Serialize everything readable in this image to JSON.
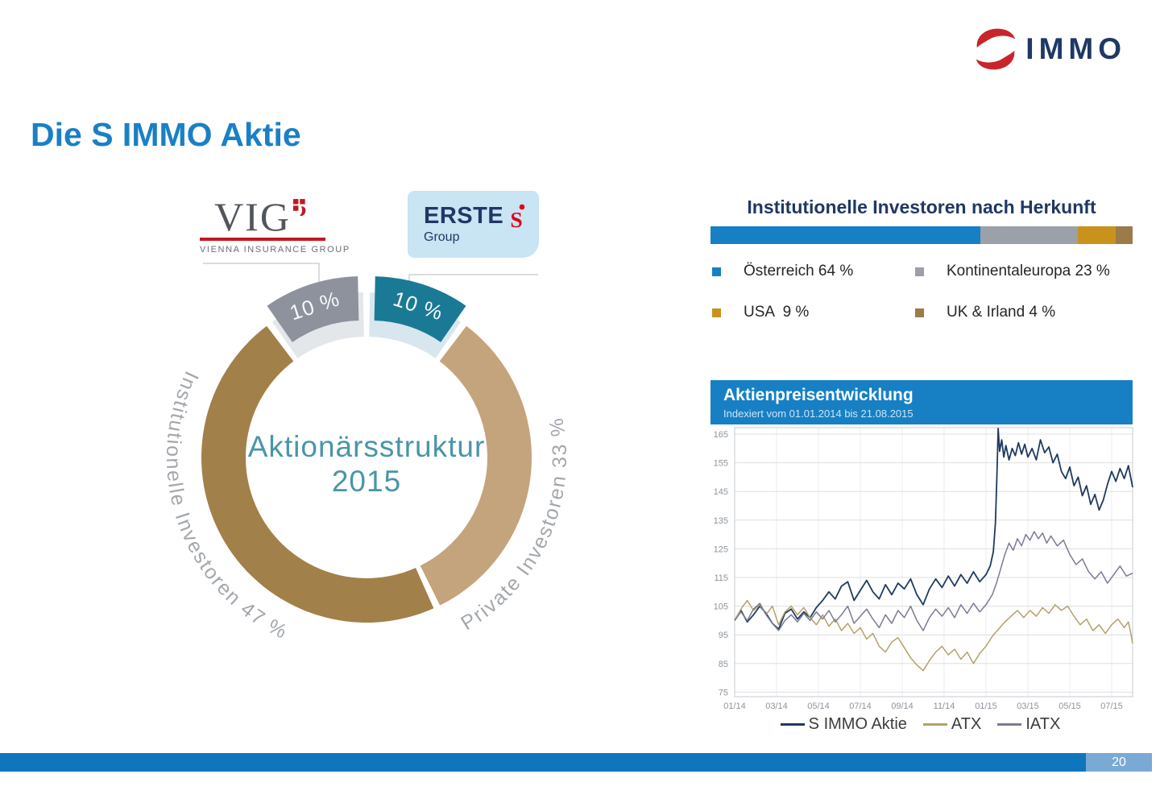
{
  "brand": {
    "s_mark": "S",
    "text": "IMMO"
  },
  "title": "Die S IMMO Aktie",
  "vig_logo": {
    "acronym": "VIG",
    "subtitle": "VIENNA INSURANCE GROUP"
  },
  "erste_logo": {
    "name": "ERSTE",
    "s_mark": "S",
    "group": "Group"
  },
  "footer": {
    "page_number": "20"
  },
  "chart_data": [
    {
      "type": "pie",
      "subtype": "donut",
      "center_label_line1": "Aktionärsstruktur",
      "center_label_line2": "2015",
      "slices": [
        {
          "label": "10 %",
          "value": 10,
          "color": "#1a7a96",
          "pale_color": "#d8e7ef",
          "exploded": true,
          "linked_logo": "ERSTE Group"
        },
        {
          "label": "Private Investoren 33 %",
          "curved_label": "Private Investoren 33 %",
          "value": 33,
          "color": "#c4a47d",
          "exploded": false
        },
        {
          "label": "Institutionelle Investoren 47 %",
          "curved_label": "Institutionelle Investoren 47 %",
          "value": 47,
          "color": "#a28049",
          "exploded": false
        },
        {
          "label": "10 %",
          "value": 10,
          "color": "#8d929c",
          "pale_color": "#e3e7ea",
          "exploded": true,
          "linked_logo": "VIG Vienna Insurance Group"
        }
      ]
    },
    {
      "type": "bar",
      "subtype": "stacked-horizontal-100",
      "title": "Institutionelle Investoren nach Herkunft",
      "categories": [
        "Österreich",
        "Kontinentaleuropa",
        "USA",
        "UK & Irland"
      ],
      "values": [
        64,
        23,
        9,
        4
      ],
      "colors": [
        "#1780c4",
        "#9ca0a8",
        "#c8921d",
        "#9b7c48"
      ],
      "legend_labels": [
        "Österreich 64 %",
        "Kontinentaleuropa 23 %",
        "USA  9 %",
        "UK & Irland 4 %"
      ]
    },
    {
      "type": "line",
      "title": "Aktienpreisentwicklung",
      "subtitle": "Indexiert vom 01.01.2014 bis 21.08.2015",
      "x_unit": "months_since_2014_01",
      "x_ticks": [
        "01/14",
        "03/14",
        "05/14",
        "07/14",
        "09/14",
        "11/14",
        "01/15",
        "03/15",
        "05/15",
        "07/15"
      ],
      "y_ticks": [
        75,
        85,
        95,
        105,
        115,
        125,
        135,
        145,
        155,
        165
      ],
      "ylim": [
        75,
        167
      ],
      "grid": true,
      "legend_position": "bottom",
      "series": [
        {
          "name": "S IMMO Aktie",
          "color": "#1f3a5f",
          "points": [
            [
              0,
              100
            ],
            [
              0.3,
              103.5
            ],
            [
              0.6,
              99.5
            ],
            [
              0.9,
              102
            ],
            [
              1.2,
              105
            ],
            [
              1.5,
              102.5
            ],
            [
              1.8,
              99
            ],
            [
              2.1,
              97
            ],
            [
              2.4,
              102.5
            ],
            [
              2.7,
              104
            ],
            [
              3,
              100.5
            ],
            [
              3.3,
              103
            ],
            [
              3.6,
              101
            ],
            [
              3.9,
              104.5
            ],
            [
              4.2,
              107
            ],
            [
              4.5,
              110
            ],
            [
              4.8,
              107.5
            ],
            [
              5.1,
              112
            ],
            [
              5.4,
              113.5
            ],
            [
              5.7,
              107
            ],
            [
              6,
              110.5
            ],
            [
              6.3,
              114
            ],
            [
              6.6,
              110
            ],
            [
              6.9,
              107.5
            ],
            [
              7.2,
              112.5
            ],
            [
              7.5,
              109
            ],
            [
              7.8,
              113
            ],
            [
              8.1,
              111
            ],
            [
              8.4,
              114.5
            ],
            [
              8.7,
              109
            ],
            [
              9,
              105.5
            ],
            [
              9.3,
              111
            ],
            [
              9.6,
              114.5
            ],
            [
              9.9,
              111.5
            ],
            [
              10.2,
              115.5
            ],
            [
              10.5,
              112
            ],
            [
              10.8,
              116
            ],
            [
              11.1,
              113
            ],
            [
              11.4,
              117
            ],
            [
              11.7,
              113.5
            ],
            [
              12,
              116
            ],
            [
              12.2,
              119
            ],
            [
              12.35,
              124
            ],
            [
              12.45,
              134
            ],
            [
              12.52,
              150
            ],
            [
              12.58,
              167
            ],
            [
              12.65,
              159
            ],
            [
              12.75,
              163
            ],
            [
              12.85,
              157
            ],
            [
              12.95,
              161
            ],
            [
              13.1,
              156
            ],
            [
              13.25,
              160
            ],
            [
              13.4,
              157.5
            ],
            [
              13.55,
              162
            ],
            [
              13.7,
              158
            ],
            [
              13.85,
              161.5
            ],
            [
              14,
              157
            ],
            [
              14.2,
              160
            ],
            [
              14.4,
              156
            ],
            [
              14.6,
              163
            ],
            [
              14.8,
              158.5
            ],
            [
              15,
              160.5
            ],
            [
              15.2,
              155
            ],
            [
              15.4,
              158
            ],
            [
              15.6,
              152
            ],
            [
              15.8,
              149.5
            ],
            [
              16,
              153.5
            ],
            [
              16.2,
              147
            ],
            [
              16.4,
              150
            ],
            [
              16.6,
              143.5
            ],
            [
              16.8,
              147
            ],
            [
              17,
              140.5
            ],
            [
              17.2,
              144
            ],
            [
              17.4,
              138.5
            ],
            [
              17.6,
              142
            ],
            [
              17.8,
              147.5
            ],
            [
              18,
              152
            ],
            [
              18.2,
              148.5
            ],
            [
              18.4,
              153
            ],
            [
              18.6,
              149.5
            ],
            [
              18.8,
              154
            ],
            [
              19,
              146.5
            ]
          ]
        },
        {
          "name": "ATX",
          "color": "#b3a269",
          "points": [
            [
              0,
              100
            ],
            [
              0.3,
              104
            ],
            [
              0.6,
              107
            ],
            [
              0.9,
              103.5
            ],
            [
              1.2,
              105.5
            ],
            [
              1.5,
              102
            ],
            [
              1.8,
              105
            ],
            [
              2.1,
              98.5
            ],
            [
              2.4,
              103
            ],
            [
              2.7,
              105
            ],
            [
              3,
              102
            ],
            [
              3.3,
              104.5
            ],
            [
              3.6,
              101
            ],
            [
              3.9,
              98.5
            ],
            [
              4.2,
              102
            ],
            [
              4.5,
              98
            ],
            [
              4.8,
              100.5
            ],
            [
              5.1,
              96.5
            ],
            [
              5.4,
              99
            ],
            [
              5.7,
              95.5
            ],
            [
              6,
              97.5
            ],
            [
              6.3,
              93.5
            ],
            [
              6.6,
              95.5
            ],
            [
              6.9,
              91
            ],
            [
              7.2,
              89
            ],
            [
              7.5,
              92.5
            ],
            [
              7.8,
              94
            ],
            [
              8.1,
              90.5
            ],
            [
              8.4,
              87
            ],
            [
              8.7,
              84.5
            ],
            [
              9,
              82.5
            ],
            [
              9.3,
              86
            ],
            [
              9.6,
              89
            ],
            [
              9.9,
              91
            ],
            [
              10.2,
              88
            ],
            [
              10.5,
              90
            ],
            [
              10.8,
              86.5
            ],
            [
              11.1,
              89
            ],
            [
              11.4,
              85
            ],
            [
              11.7,
              88.5
            ],
            [
              12,
              91
            ],
            [
              12.3,
              94.5
            ],
            [
              12.6,
              97
            ],
            [
              12.9,
              99.5
            ],
            [
              13.2,
              101.5
            ],
            [
              13.5,
              103.5
            ],
            [
              13.8,
              101
            ],
            [
              14.1,
              103.5
            ],
            [
              14.4,
              101.5
            ],
            [
              14.7,
              104.5
            ],
            [
              15,
              102.5
            ],
            [
              15.3,
              105.5
            ],
            [
              15.6,
              103.5
            ],
            [
              15.9,
              105
            ],
            [
              16.2,
              101.5
            ],
            [
              16.5,
              98.5
            ],
            [
              16.8,
              100.5
            ],
            [
              17.1,
              96.5
            ],
            [
              17.4,
              98.5
            ],
            [
              17.7,
              95.5
            ],
            [
              18,
              98.5
            ],
            [
              18.3,
              100.5
            ],
            [
              18.6,
              97.5
            ],
            [
              18.8,
              99.5
            ],
            [
              18.9,
              96
            ],
            [
              19,
              92
            ]
          ]
        },
        {
          "name": "IATX",
          "color": "#7b7b94",
          "points": [
            [
              0,
              100
            ],
            [
              0.3,
              103
            ],
            [
              0.6,
              100
            ],
            [
              0.9,
              104
            ],
            [
              1.2,
              106
            ],
            [
              1.5,
              102
            ],
            [
              1.8,
              99
            ],
            [
              2.1,
              96.5
            ],
            [
              2.4,
              100
            ],
            [
              2.7,
              102
            ],
            [
              3,
              99.5
            ],
            [
              3.3,
              102.5
            ],
            [
              3.6,
              100
            ],
            [
              3.9,
              103
            ],
            [
              4.2,
              100.5
            ],
            [
              4.5,
              103.5
            ],
            [
              4.8,
              99.5
            ],
            [
              5.1,
              102
            ],
            [
              5.4,
              105
            ],
            [
              5.7,
              99
            ],
            [
              6,
              101.5
            ],
            [
              6.3,
              104
            ],
            [
              6.6,
              100.5
            ],
            [
              6.9,
              97.5
            ],
            [
              7.2,
              102
            ],
            [
              7.5,
              99
            ],
            [
              7.8,
              103.5
            ],
            [
              8.1,
              101
            ],
            [
              8.4,
              105
            ],
            [
              8.7,
              100
            ],
            [
              9,
              96.5
            ],
            [
              9.3,
              101
            ],
            [
              9.6,
              104
            ],
            [
              9.9,
              101.5
            ],
            [
              10.2,
              104.5
            ],
            [
              10.5,
              101
            ],
            [
              10.8,
              105.5
            ],
            [
              11.1,
              102.5
            ],
            [
              11.4,
              106
            ],
            [
              11.7,
              103
            ],
            [
              12,
              105.5
            ],
            [
              12.3,
              109
            ],
            [
              12.5,
              113
            ],
            [
              12.7,
              118
            ],
            [
              12.9,
              123
            ],
            [
              13.1,
              127
            ],
            [
              13.3,
              124.5
            ],
            [
              13.5,
              128.5
            ],
            [
              13.7,
              126
            ],
            [
              13.9,
              130
            ],
            [
              14.1,
              128
            ],
            [
              14.3,
              131
            ],
            [
              14.5,
              128.5
            ],
            [
              14.7,
              130.5
            ],
            [
              14.9,
              127
            ],
            [
              15.1,
              129.5
            ],
            [
              15.4,
              126
            ],
            [
              15.7,
              128
            ],
            [
              16,
              123
            ],
            [
              16.3,
              119.5
            ],
            [
              16.6,
              121.5
            ],
            [
              16.9,
              117
            ],
            [
              17.2,
              114.5
            ],
            [
              17.5,
              117
            ],
            [
              17.8,
              113
            ],
            [
              18.1,
              116
            ],
            [
              18.4,
              119
            ],
            [
              18.7,
              115.5
            ],
            [
              19,
              116.5
            ]
          ]
        }
      ]
    }
  ]
}
